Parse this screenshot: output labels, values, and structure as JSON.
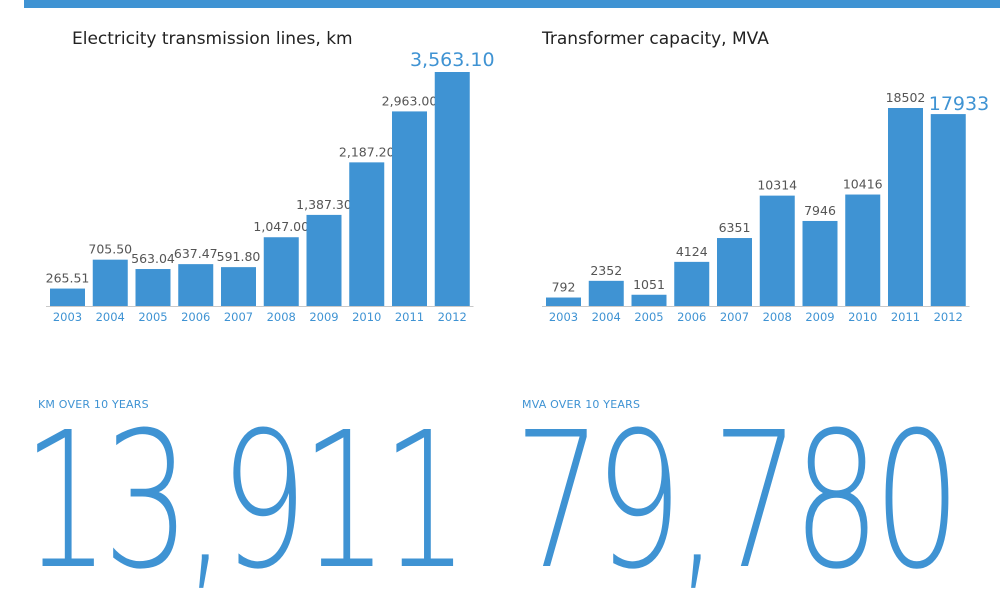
{
  "colors": {
    "accent": "#3f93d3",
    "text": "#222222",
    "value_label": "#555555"
  },
  "chart_data": [
    {
      "type": "bar",
      "title": "Electricity transmission lines, km",
      "categories": [
        "2003",
        "2004",
        "2005",
        "2006",
        "2007",
        "2008",
        "2009",
        "2010",
        "2011",
        "2012"
      ],
      "values": [
        265.51,
        705.5,
        563.04,
        637.47,
        591.8,
        1047.0,
        1387.3,
        2187.2,
        2963.0,
        3563.1
      ],
      "value_labels": [
        "265.51",
        "705.50",
        "563.04",
        "637.47",
        "591.80",
        "1,047.00",
        "1,387.30",
        "2,187.20",
        "2,963.00",
        "3,563.10"
      ],
      "highlight_last": true,
      "xlabel": "",
      "ylabel": "",
      "grid": false
    },
    {
      "type": "bar",
      "title": "Transformer capacity, MVA",
      "categories": [
        "2003",
        "2004",
        "2005",
        "2006",
        "2007",
        "2008",
        "2009",
        "2010",
        "2011",
        "2012"
      ],
      "values": [
        792,
        2352,
        1051,
        4124,
        6351,
        10314,
        7946,
        10416,
        18502,
        17933
      ],
      "value_labels": [
        "792",
        "2352",
        "1051",
        "4124",
        "6351",
        "10314",
        "7946",
        "10416",
        "18502",
        "17933"
      ],
      "highlight_last": true,
      "xlabel": "",
      "ylabel": "",
      "grid": false
    }
  ],
  "totals": [
    {
      "label": "KM OVER 10 YEARS",
      "value": "13,911"
    },
    {
      "label": "MVA OVER 10 YEARS",
      "value": "79,780"
    }
  ]
}
